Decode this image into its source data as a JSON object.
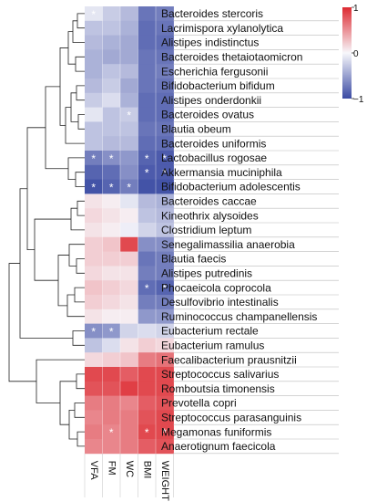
{
  "chart_data": {
    "type": "heatmap",
    "title": "",
    "columns": [
      "VFA",
      "FM",
      "WC",
      "BMI",
      "WEIGHT"
    ],
    "rows": [
      "Bacteroides stercoris",
      "Lacrimispora xylanolytica",
      "Alistipes indistinctus",
      "Bacteroides thetaiotaomicron",
      "Escherichia fergusonii",
      "Bifidobacterium bifidum",
      "Alistipes onderdonkii",
      "Bacteroides ovatus",
      "Blautia obeum",
      "Bacteroides uniformis",
      "Lactobacillus rogosae",
      "Akkermansia muciniphila",
      "Bifidobacterium adolescentis",
      "Bacteroides caccae",
      "Kineothrix alysoides",
      "Clostridium leptum",
      "Senegalimassilia anaerobia",
      "Blautia faecis",
      "Alistipes putredinis",
      "Phocaeicola coprocola",
      "Desulfovibrio intestinalis",
      "Ruminococcus champanellensis",
      "Eubacterium rectale",
      "Eubacterium ramulus",
      "Faecalibacterium prausnitzii",
      "Streptococcus salivarius",
      "Romboutsia timonensis",
      "Prevotella copri",
      "Streptococcus parasanguinis",
      "Megamonas funiformis",
      "Anaerotignum faecicola"
    ],
    "values": [
      [
        -0.1,
        -0.25,
        -0.35,
        -0.75,
        -0.7
      ],
      [
        -0.3,
        -0.3,
        -0.4,
        -0.8,
        -0.75
      ],
      [
        -0.35,
        -0.4,
        -0.45,
        -0.8,
        -0.8
      ],
      [
        -0.4,
        -0.45,
        -0.45,
        -0.75,
        -0.75
      ],
      [
        -0.4,
        -0.3,
        -0.35,
        -0.75,
        -0.7
      ],
      [
        -0.35,
        -0.25,
        -0.45,
        -0.75,
        -0.75
      ],
      [
        -0.25,
        -0.15,
        -0.4,
        -0.8,
        -0.8
      ],
      [
        -0.1,
        -0.3,
        -0.25,
        -0.8,
        -0.8
      ],
      [
        -0.3,
        -0.3,
        -0.3,
        -0.75,
        -0.75
      ],
      [
        -0.3,
        -0.35,
        -0.35,
        -0.8,
        -0.8
      ],
      [
        -0.7,
        -0.6,
        -0.55,
        -0.85,
        -0.9
      ],
      [
        -0.85,
        -0.8,
        -0.6,
        -0.9,
        -0.9
      ],
      [
        -0.95,
        -0.85,
        -0.7,
        -0.95,
        -0.95
      ],
      [
        0.1,
        0.05,
        -0.1,
        -0.35,
        -0.4
      ],
      [
        0.15,
        0.1,
        0.05,
        -0.3,
        -0.35
      ],
      [
        0.1,
        0.05,
        -0.05,
        -0.2,
        -0.3
      ],
      [
        0.2,
        0.25,
        0.85,
        -0.6,
        -0.6
      ],
      [
        0.2,
        0.2,
        0.2,
        -0.75,
        -0.7
      ],
      [
        0.15,
        0.1,
        0.1,
        -0.7,
        -0.7
      ],
      [
        0.25,
        0.2,
        0.15,
        -0.8,
        -0.85
      ],
      [
        0.2,
        0.15,
        0.1,
        -0.7,
        -0.7
      ],
      [
        0.1,
        0.05,
        0.05,
        -0.55,
        -0.55
      ],
      [
        -0.6,
        -0.55,
        -0.2,
        -0.15,
        -0.2
      ],
      [
        -0.3,
        -0.15,
        0.1,
        0.2,
        0.15
      ],
      [
        0.15,
        0.2,
        0.25,
        0.6,
        0.65
      ],
      [
        0.85,
        0.85,
        0.75,
        0.85,
        0.85
      ],
      [
        0.8,
        0.8,
        0.9,
        0.85,
        0.85
      ],
      [
        0.6,
        0.6,
        0.55,
        0.75,
        0.8
      ],
      [
        0.55,
        0.6,
        0.6,
        0.8,
        0.85
      ],
      [
        0.6,
        0.55,
        0.6,
        0.85,
        0.85
      ],
      [
        0.55,
        0.55,
        0.6,
        0.75,
        0.8
      ]
    ],
    "significance": [
      [
        0,
        0
      ],
      [
        7,
        2
      ],
      [
        10,
        0
      ],
      [
        10,
        1
      ],
      [
        10,
        3
      ],
      [
        10,
        4
      ],
      [
        11,
        3
      ],
      [
        11,
        4
      ],
      [
        12,
        0
      ],
      [
        12,
        1
      ],
      [
        12,
        2
      ],
      [
        19,
        3
      ],
      [
        19,
        4
      ],
      [
        22,
        0
      ],
      [
        22,
        1
      ],
      [
        29,
        1
      ],
      [
        29,
        3
      ],
      [
        29,
        4
      ]
    ],
    "significance_marker": "*",
    "color_scale": {
      "min": -1,
      "mid": 0,
      "max": 1,
      "colors": [
        "#3a4aa3",
        "#f7f7fb",
        "#dd2a31"
      ],
      "ticks": [
        {
          "value": 1,
          "label": "1"
        },
        {
          "value": 0,
          "label": "0"
        },
        {
          "value": -1,
          "label": "−1"
        }
      ]
    },
    "row_dendrogram": true,
    "legend": "top-right"
  }
}
